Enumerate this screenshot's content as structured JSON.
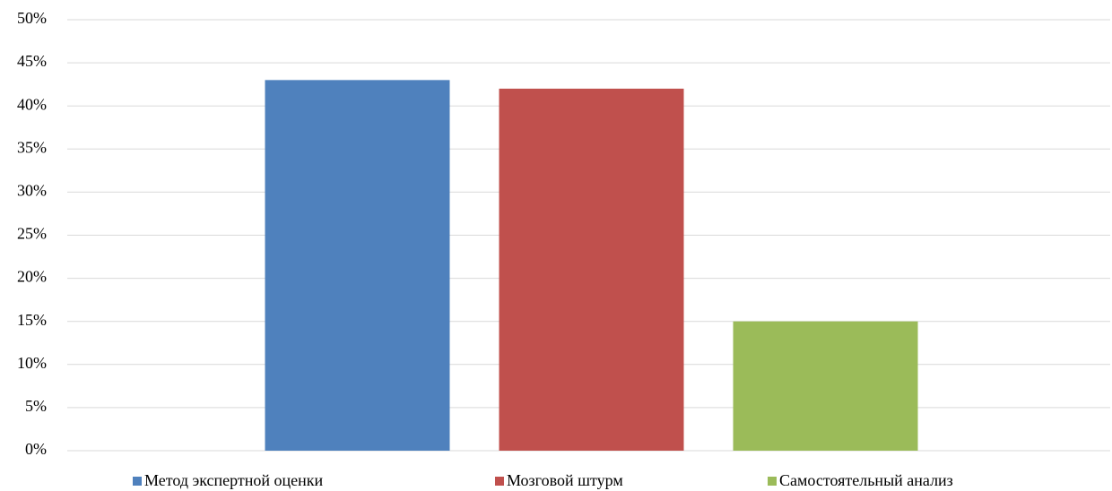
{
  "chart_data": {
    "type": "bar",
    "categories": [
      null
    ],
    "series": [
      {
        "name": "Метод экспертной оценки",
        "color": "#4f81bd",
        "values": [
          43
        ]
      },
      {
        "name": "Мозговой штурм",
        "color": "#c0504d",
        "values": [
          42
        ]
      },
      {
        "name": "Самостоятельный анализ",
        "color": "#9bbb59",
        "values": [
          15
        ]
      }
    ],
    "ylim": [
      0,
      50
    ],
    "yticks": [
      {
        "value": 0,
        "label": "0%"
      },
      {
        "value": 5,
        "label": "5%"
      },
      {
        "value": 10,
        "label": "10%"
      },
      {
        "value": 15,
        "label": "15%"
      },
      {
        "value": 20,
        "label": "20%"
      },
      {
        "value": 25,
        "label": "25%"
      },
      {
        "value": 30,
        "label": "30%"
      },
      {
        "value": 35,
        "label": "35%"
      },
      {
        "value": 40,
        "label": "40%"
      },
      {
        "value": 45,
        "label": "45%"
      },
      {
        "value": 50,
        "label": "50%"
      }
    ],
    "grid": true,
    "legend": "bottom"
  }
}
